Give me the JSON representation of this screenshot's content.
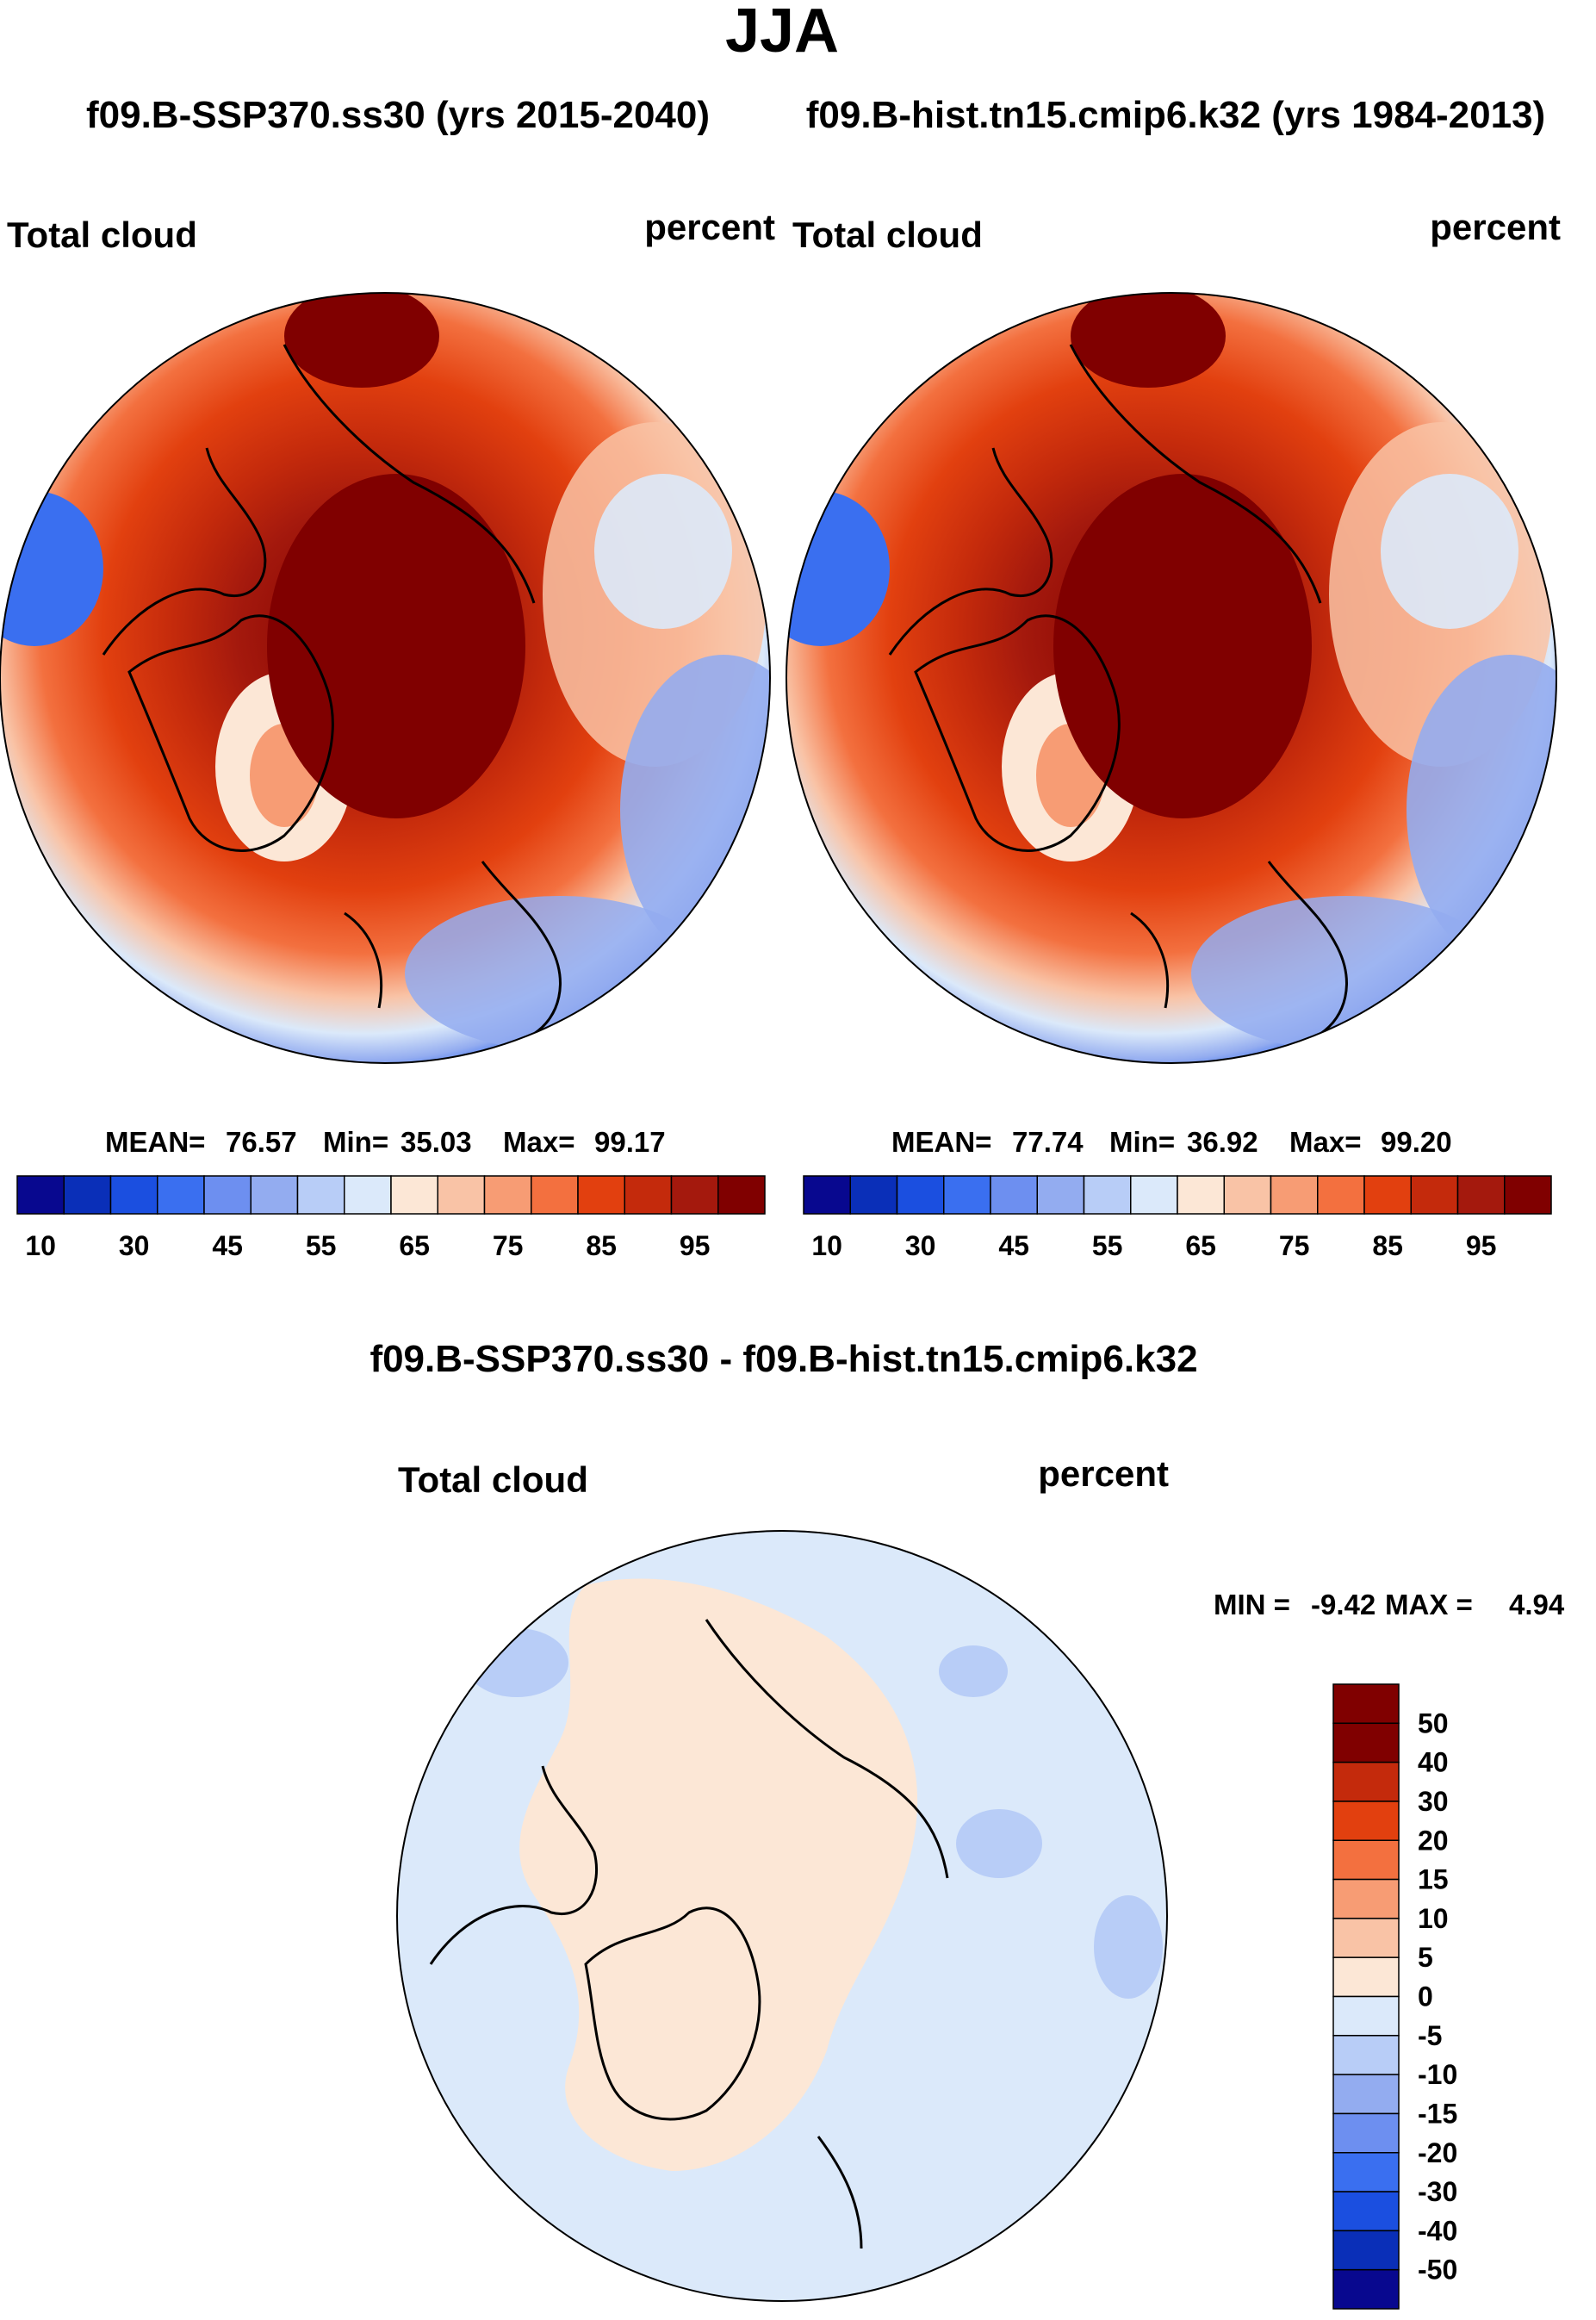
{
  "header": {
    "title": "JJA",
    "subtitle_left": "f09.B-SSP370.ss30 (yrs 2015-2040)",
    "subtitle_right": "f09.B-hist.tn15.cmip6.k32 (yrs 1984-2013)"
  },
  "colors": {
    "absolute_scale": [
      "#08088f",
      "#0a2fb8",
      "#1b4fe0",
      "#3a6ff0",
      "#6d8ff0",
      "#93acf0",
      "#b8cdf7",
      "#dbe9fa",
      "#fce7d6",
      "#f9c3a6",
      "#f79c74",
      "#f3703f",
      "#e2400f",
      "#c42a0c",
      "#a4190d",
      "#800000"
    ],
    "difference_scale": [
      "#08088f",
      "#0a2fb8",
      "#1b4fe0",
      "#3a6ff0",
      "#6d8ff0",
      "#93acf0",
      "#b8cdf7",
      "#dbe9fa",
      "#fce7d6",
      "#f9c3a6",
      "#f79c74",
      "#f3703f",
      "#e2400f",
      "#c42a0c",
      "#800000"
    ],
    "coastline": "#000000"
  },
  "chart_data": [
    {
      "type": "heatmap",
      "projection": "north-polar-stereographic",
      "panel": "left",
      "case": "f09.B-SSP370.ss30 (yrs 2015-2040)",
      "variable": "Total cloud",
      "units": "percent",
      "stats": {
        "mean_label": "MEAN=",
        "mean": "76.57",
        "min_label": "Min=",
        "min": "35.03",
        "max_label": "Max=",
        "max": "99.17"
      },
      "colorbar_ticks": [
        "10",
        "30",
        "45",
        "55",
        "65",
        "75",
        "85",
        "95"
      ],
      "colorbar_levels": [
        10,
        20,
        30,
        40,
        45,
        50,
        55,
        60,
        65,
        70,
        75,
        80,
        85,
        90,
        95
      ]
    },
    {
      "type": "heatmap",
      "projection": "north-polar-stereographic",
      "panel": "right",
      "case": "f09.B-hist.tn15.cmip6.k32 (yrs 1984-2013)",
      "variable": "Total cloud",
      "units": "percent",
      "stats": {
        "mean_label": "MEAN=",
        "mean": "77.74",
        "min_label": "Min=",
        "min": "36.92",
        "max_label": "Max=",
        "max": "99.20"
      },
      "colorbar_ticks": [
        "10",
        "30",
        "45",
        "55",
        "65",
        "75",
        "85",
        "95"
      ],
      "colorbar_levels": [
        10,
        20,
        30,
        40,
        45,
        50,
        55,
        60,
        65,
        70,
        75,
        80,
        85,
        90,
        95
      ]
    },
    {
      "type": "heatmap",
      "projection": "north-polar-stereographic",
      "panel": "difference",
      "title": "f09.B-SSP370.ss30 - f09.B-hist.tn15.cmip6.k32",
      "variable": "Total cloud",
      "units": "percent",
      "stats": {
        "min_label": "MIN =",
        "min": "-9.42",
        "max_label": "MAX =",
        "max": "4.94"
      },
      "colorbar_ticks": [
        "50",
        "40",
        "30",
        "20",
        "15",
        "10",
        "5",
        "0",
        "-5",
        "-10",
        "-15",
        "-20",
        "-30",
        "-40",
        "-50"
      ]
    }
  ]
}
